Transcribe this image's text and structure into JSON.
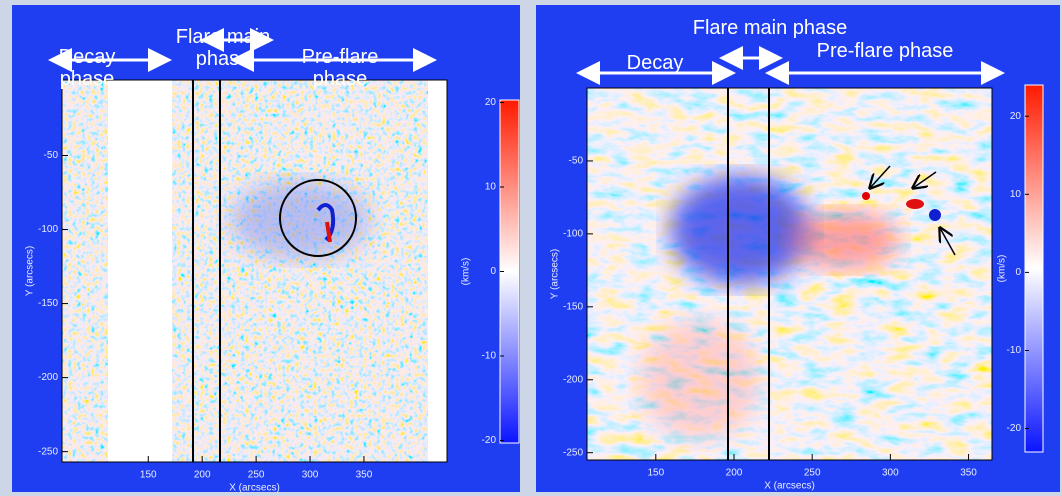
{
  "chart_data": [
    {
      "type": "image",
      "xlabel": "X (arcsecs)",
      "ylabel": "Y (arcsecs)",
      "xlim": [
        70,
        427
      ],
      "ylim": [
        -257,
        1
      ],
      "xticks": [
        150,
        200,
        250,
        300,
        350
      ],
      "yticks": [
        -50,
        -100,
        -150,
        -200,
        -250
      ],
      "colorbar_label": "(km/s)",
      "colorbar_lim": [
        -20.3,
        20.3
      ],
      "colorbar_ticks": [
        20,
        10,
        0,
        -10,
        -20
      ],
      "annotations": [
        "Decay phase",
        "Flare main phase",
        "Pre-flare phase"
      ]
    },
    {
      "type": "image",
      "xlabel": "X (arcsecs)",
      "ylabel": "Y (arcsecs)",
      "xlim": [
        106,
        365
      ],
      "ylim": [
        -255,
        0
      ],
      "xticks": [
        150,
        200,
        250,
        300,
        350
      ],
      "yticks": [
        -50,
        -100,
        -150,
        -200,
        -250
      ],
      "colorbar_label": "(km/s)",
      "colorbar_lim": [
        -23,
        24
      ],
      "colorbar_ticks": [
        20,
        10,
        0,
        -10,
        -20
      ],
      "annotations": [
        "Decay",
        "Flare main phase",
        "Pre-flare phase"
      ]
    }
  ]
}
